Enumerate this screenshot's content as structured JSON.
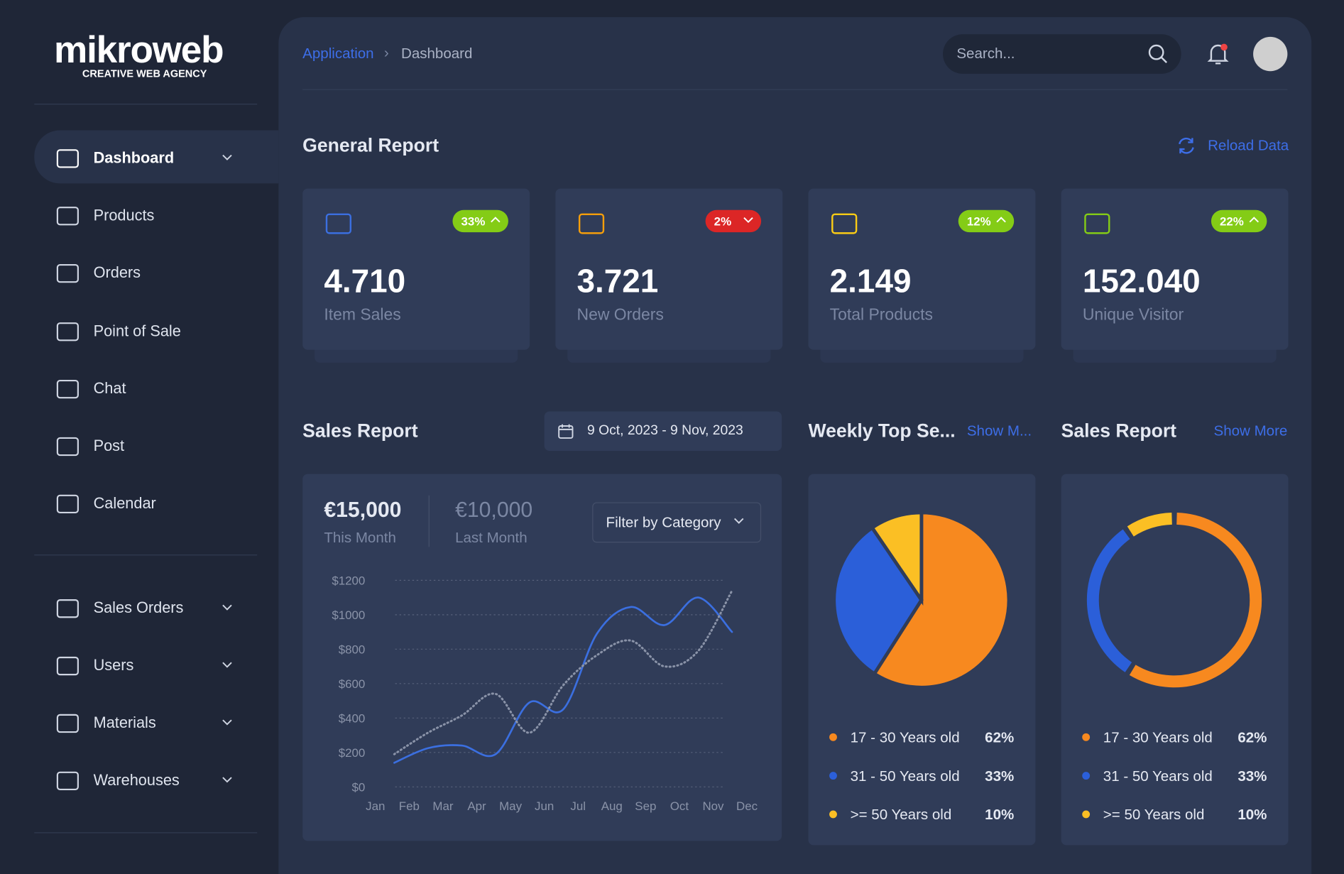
{
  "sidebar": {
    "brand": "mikroweb",
    "tagline": "CREATIVE WEB AGENCY",
    "menu": [
      "Dashboard",
      "Products",
      "Orders",
      "Point of Sale",
      "Chat",
      "Post",
      "Calendar"
    ],
    "menu2": [
      "Sales Orders",
      "Users",
      "Materials",
      "Warehouses"
    ]
  },
  "topbar": {
    "breadcrumb": [
      "Application",
      "Dashboard"
    ],
    "search": "Search..."
  },
  "general_report": {
    "title": "General Report",
    "reload": "Reload Data",
    "stats": [
      {
        "value": "4.710",
        "label": "Item Sales",
        "change": "33%",
        "trend": "up",
        "icon_color": "#3b6fe0"
      },
      {
        "value": "3.721",
        "label": "New Orders",
        "change": "2%",
        "trend": "down",
        "icon_color": "#f59e0b"
      },
      {
        "value": "2.149",
        "label": "Total Products",
        "change": "12%",
        "trend": "up",
        "icon_color": "#facc15"
      },
      {
        "value": "152.040",
        "label": "Unique Visitor",
        "change": "22%",
        "trend": "up",
        "icon_color": "#84cc16"
      }
    ]
  },
  "sales_report": {
    "title": "Sales Report",
    "date_range": "9 Oct, 2023 - 9 Nov, 2023",
    "this_month": {
      "amount": "€15,000",
      "label": "This Month"
    },
    "last_month": {
      "amount": "€10,000",
      "label": "Last Month"
    },
    "filter": "Filter by Category",
    "chart": {
      "type": "line",
      "categories": [
        "Jan",
        "Feb",
        "Mar",
        "Apr",
        "May",
        "Jun",
        "Jul",
        "Aug",
        "Sep",
        "Oct",
        "Nov",
        "Dec"
      ],
      "ylim": [
        0,
        1200
      ],
      "yticks": [
        {
          "value": 0,
          "label": "$0"
        },
        {
          "value": 200,
          "label": "$200"
        },
        {
          "value": 400,
          "label": "$400"
        },
        {
          "value": 600,
          "label": "$600"
        },
        {
          "value": 800,
          "label": "$800"
        },
        {
          "value": 1000,
          "label": "$1000"
        },
        {
          "value": 1200,
          "label": "$1200"
        }
      ],
      "grid": true,
      "series": [
        {
          "color": "#3b6fe0",
          "style": "solid",
          "values": [
            140,
            225,
            240,
            190,
            490,
            450,
            890,
            1045,
            940,
            1100,
            900,
            null
          ]
        },
        {
          "color": "#8a93a8",
          "style": "dotted",
          "values": [
            190,
            315,
            415,
            540,
            315,
            590,
            765,
            850,
            700,
            790,
            1140,
            null
          ]
        }
      ]
    }
  },
  "weekly_top": {
    "title": "Weekly Top Se...",
    "link": "Show M...",
    "chart": {
      "type": "pie",
      "categories": [
        "17 - 30 Years old",
        "31 - 50 Years old",
        ">= 50 Years old"
      ],
      "values": [
        62,
        33,
        10
      ],
      "value_labels": [
        "62%",
        "33%",
        "10%"
      ],
      "colors": [
        "#f7891f",
        "#2b5fd9",
        "#fbbf24"
      ]
    }
  },
  "sales_donut": {
    "title": "Sales Report",
    "link": "Show More",
    "chart": {
      "type": "donut",
      "categories": [
        "17 - 30 Years old",
        "31 - 50 Years old",
        ">= 50 Years old"
      ],
      "values": [
        62,
        33,
        10
      ],
      "value_labels": [
        "62%",
        "33%",
        "10%"
      ],
      "colors": [
        "#f7891f",
        "#2b5fd9",
        "#fbbf24"
      ]
    }
  }
}
